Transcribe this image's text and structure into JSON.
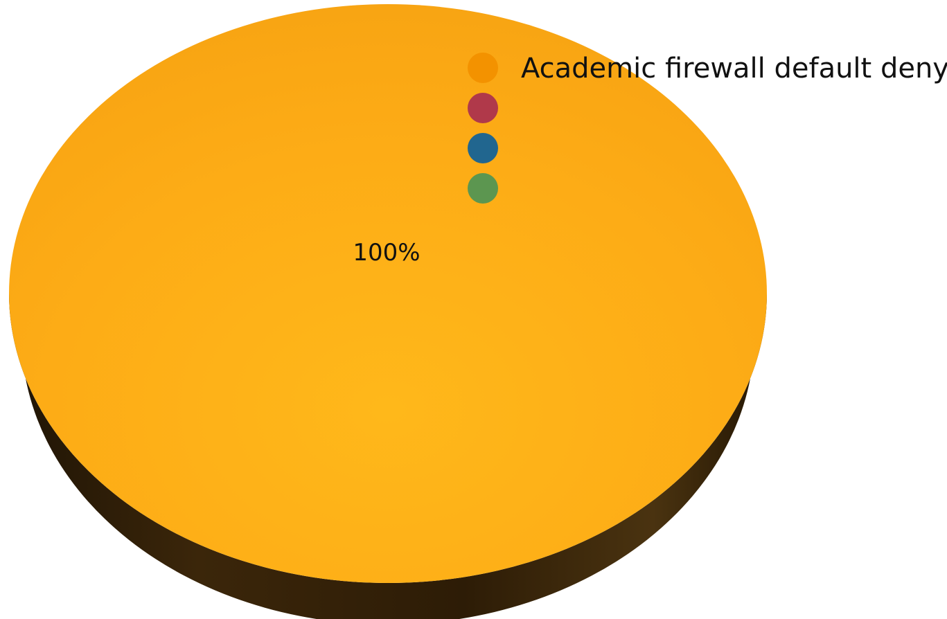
{
  "chart_data": {
    "type": "pie",
    "style": "3d",
    "slices": [
      {
        "label": "Academic firewall default deny",
        "value": 100,
        "value_label": "100%",
        "color": "#F39200"
      },
      {
        "label": "",
        "value": 0,
        "color": "#B0394A"
      },
      {
        "label": "",
        "value": 0,
        "color": "#21668F"
      },
      {
        "label": "",
        "value": 0,
        "color": "#5C9650"
      }
    ],
    "legend": {
      "placement": "top-right"
    },
    "pie_top_color": "#FCAC16",
    "pie_side_color": "#3A2509"
  }
}
